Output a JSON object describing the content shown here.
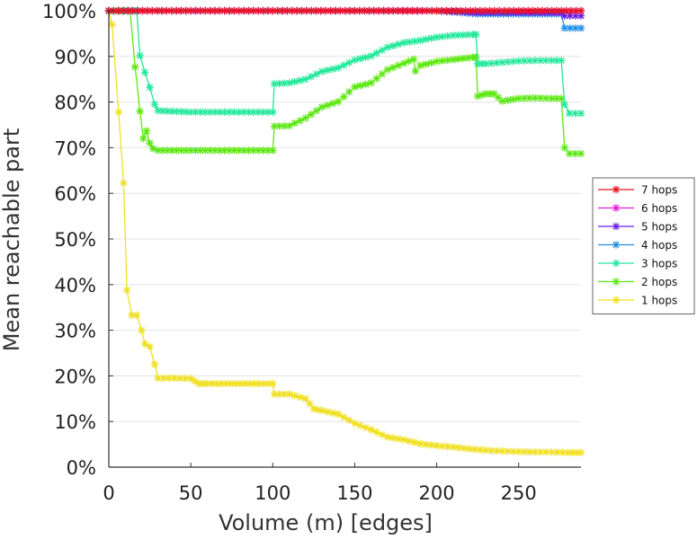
{
  "chart_data": {
    "type": "line",
    "title": "",
    "xlabel": "Volume (m) [edges]",
    "ylabel": "Mean reachable part",
    "xlim": [
      0,
      288
    ],
    "ylim": [
      0,
      100
    ],
    "xticks": [
      0,
      50,
      100,
      150,
      200,
      250
    ],
    "yticks": [
      0,
      10,
      20,
      30,
      40,
      50,
      60,
      70,
      80,
      90,
      100
    ],
    "ytick_labels": [
      "0%",
      "10%",
      "20%",
      "30%",
      "40%",
      "50%",
      "60%",
      "70%",
      "80%",
      "90%",
      "100%"
    ],
    "grid": "horizontal",
    "legend_position": "right",
    "series": [
      {
        "name": "7 hops",
        "color": "#e8131f",
        "x": [
          0,
          50,
          100,
          150,
          200,
          250,
          276,
          288
        ],
        "y": [
          100,
          100,
          100,
          100,
          100,
          100,
          100,
          100
        ]
      },
      {
        "name": "6 hops",
        "color": "#e81adb",
        "x": [
          0,
          50,
          100,
          150,
          185,
          200,
          250,
          276,
          288
        ],
        "y": [
          100,
          100,
          100,
          100,
          100,
          100,
          100,
          100,
          100
        ]
      },
      {
        "name": "5 hops",
        "color": "#6a1ae8",
        "x": [
          0,
          50,
          100,
          150,
          200,
          225,
          250,
          276,
          278,
          288
        ],
        "y": [
          100,
          100,
          100,
          100,
          100,
          99.6,
          99.6,
          99.6,
          98.9,
          98.9
        ]
      },
      {
        "name": "4 hops",
        "color": "#1f8fe8",
        "x": [
          0,
          50,
          100,
          150,
          200,
          225,
          250,
          276,
          278,
          288
        ],
        "y": [
          100,
          100,
          100,
          100,
          100,
          99.3,
          99.3,
          99.3,
          96.2,
          96.2
        ]
      },
      {
        "name": "3 hops",
        "color": "#22e89a",
        "x": [
          0,
          17,
          19,
          22,
          25,
          28,
          30,
          50,
          100,
          101,
          110,
          120,
          130,
          140,
          150,
          160,
          170,
          180,
          190,
          200,
          210,
          222,
          224,
          225,
          230,
          240,
          250,
          260,
          270,
          276,
          278,
          281,
          288
        ],
        "y": [
          100,
          100,
          90.2,
          86.5,
          83.2,
          79.5,
          78.1,
          77.8,
          77.8,
          84.0,
          84.2,
          85.0,
          86.7,
          87.5,
          89.2,
          90.1,
          92.0,
          93.0,
          93.5,
          94.2,
          94.6,
          94.8,
          94.8,
          88.4,
          88.4,
          88.7,
          89.0,
          89.1,
          89.1,
          89.1,
          79.5,
          77.5,
          77.5
        ]
      },
      {
        "name": "2 hops",
        "color": "#5ae80f",
        "x": [
          0,
          13,
          16,
          19,
          21,
          23,
          25,
          27,
          30,
          50,
          100,
          101,
          110,
          120,
          130,
          140,
          150,
          160,
          170,
          180,
          186,
          187,
          190,
          200,
          210,
          222,
          224,
          225,
          230,
          235,
          240,
          250,
          260,
          270,
          276,
          278,
          281,
          288
        ],
        "y": [
          100,
          100,
          87.7,
          78.0,
          72.0,
          73.7,
          71.0,
          69.8,
          69.4,
          69.4,
          69.4,
          74.7,
          74.8,
          76.5,
          78.9,
          80.1,
          83.3,
          84.2,
          87.1,
          88.5,
          89.4,
          86.8,
          88.0,
          88.9,
          89.3,
          89.8,
          89.8,
          81.3,
          81.8,
          81.8,
          80.2,
          80.8,
          80.9,
          80.8,
          80.8,
          70.0,
          68.7,
          68.7
        ]
      },
      {
        "name": "1 hops",
        "color": "#f0e020",
        "x": [
          0,
          2,
          6,
          9,
          11,
          14,
          17,
          20,
          22,
          25,
          28,
          30,
          40,
          50,
          55,
          60,
          80,
          100,
          101,
          110,
          120,
          125,
          130,
          140,
          150,
          160,
          170,
          180,
          190,
          200,
          210,
          220,
          230,
          240,
          250,
          260,
          270,
          280,
          288
        ],
        "y": [
          100,
          97.0,
          77.8,
          62.3,
          38.8,
          33.3,
          33.3,
          30.0,
          27.0,
          26.4,
          22.5,
          19.5,
          19.5,
          19.4,
          18.3,
          18.3,
          18.3,
          18.3,
          16.0,
          16.0,
          15.0,
          12.8,
          12.4,
          11.6,
          9.6,
          8.2,
          6.6,
          6.0,
          5.1,
          4.7,
          4.4,
          4.0,
          3.7,
          3.5,
          3.4,
          3.3,
          3.3,
          3.2,
          3.2
        ]
      }
    ]
  }
}
